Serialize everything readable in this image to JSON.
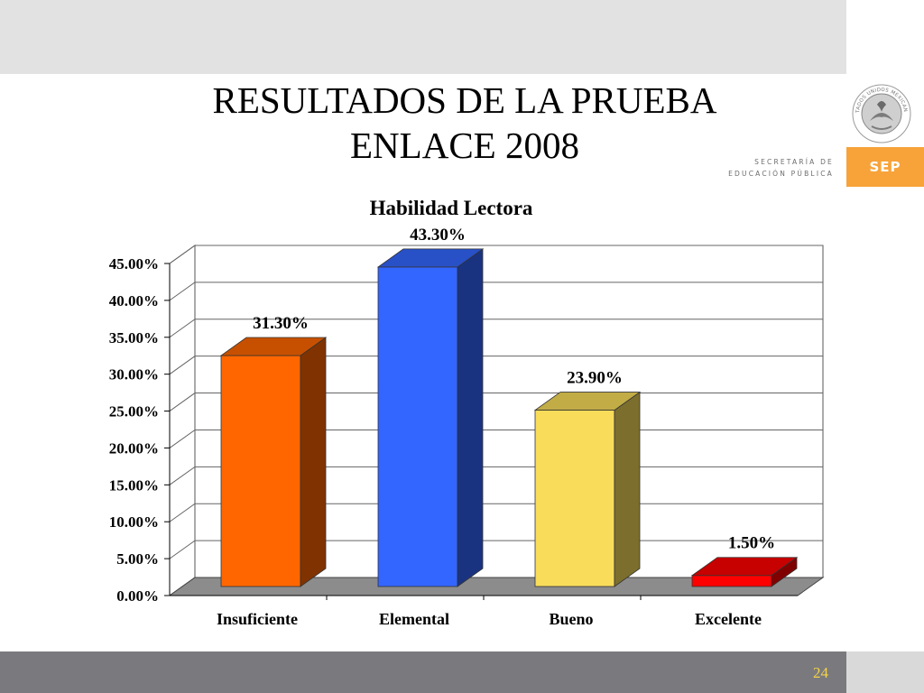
{
  "slide": {
    "title_line1": "RESULTADOS DE LA PRUEBA",
    "title_line2": "ENLACE 2008",
    "page_number": "24"
  },
  "branding": {
    "seal_icon": "mexican-eagle-seal-icon",
    "seal_text": "ESTADOS UNIDOS MEXICANOS",
    "secretaria_line1": "SECRETARÍA DE",
    "secretaria_line2": "EDUCACIÓN PÚBLICA",
    "sep_label": "SEP",
    "colors": {
      "top_band": "#e2e2e2",
      "bottom_band": "#7a7a7e",
      "sep_orange": "#f7a33a"
    }
  },
  "chart_data": {
    "type": "bar",
    "title": "Habilidad Lectora",
    "xlabel": "",
    "ylabel": "",
    "ylim": [
      0,
      45
    ],
    "yticks": [
      0,
      5,
      10,
      15,
      20,
      25,
      30,
      35,
      40,
      45
    ],
    "ytick_labels": [
      "0.00%",
      "5.00%",
      "10.00%",
      "15.00%",
      "20.00%",
      "25.00%",
      "30.00%",
      "35.00%",
      "40.00%",
      "45.00%"
    ],
    "categories": [
      "Insuficiente",
      "Elemental",
      "Bueno",
      "Excelente"
    ],
    "values": [
      31.3,
      43.3,
      23.9,
      1.5
    ],
    "data_labels": [
      "31.30%",
      "43.30%",
      "23.90%",
      "1.50%"
    ],
    "colors": [
      "#ff6600",
      "#3366ff",
      "#f8dc5a",
      "#ff0000"
    ],
    "grid": true,
    "style": "3d"
  }
}
